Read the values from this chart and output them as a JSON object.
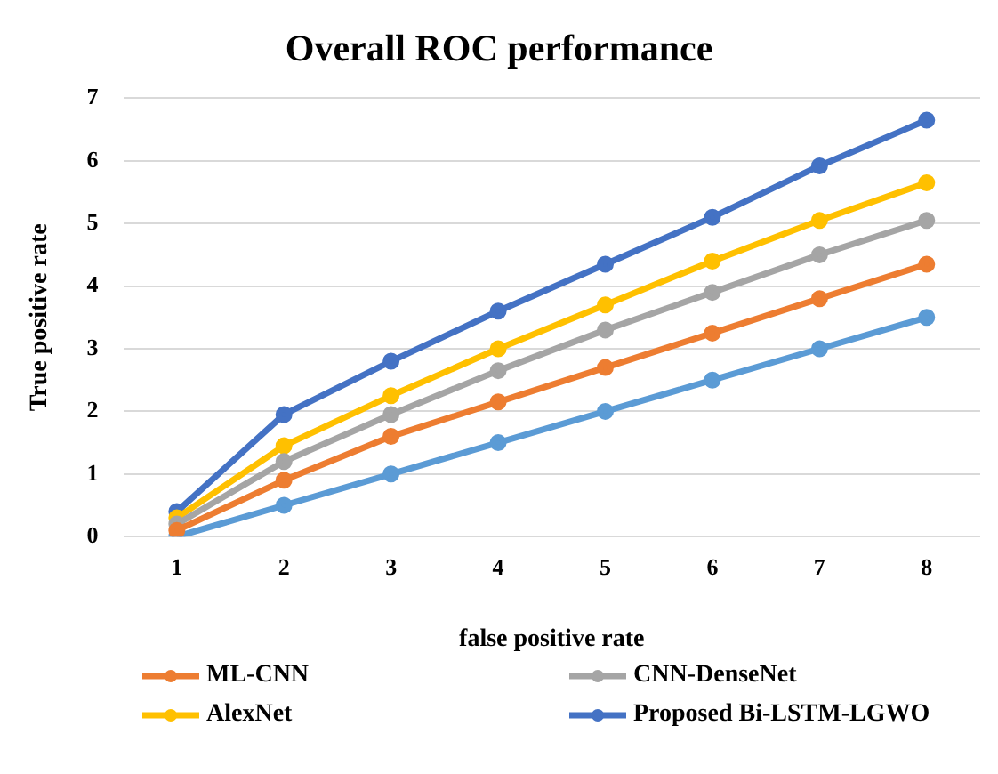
{
  "chart_data": {
    "type": "line",
    "title": "Overall ROC performance",
    "xlabel": "false positive rate",
    "ylabel": "True positive rate",
    "categories": [
      "1",
      "2",
      "3",
      "4",
      "5",
      "6",
      "7",
      "8"
    ],
    "series": [
      {
        "name": "ML-CNN",
        "color": "#ed7d31",
        "values": [
          0.1,
          0.9,
          1.6,
          2.15,
          2.7,
          3.25,
          3.8,
          4.35
        ]
      },
      {
        "name": "CNN-DenseNet",
        "color": "#a5a5a5",
        "values": [
          0.2,
          1.2,
          1.95,
          2.65,
          3.3,
          3.9,
          4.5,
          5.05
        ]
      },
      {
        "name": "AlexNet",
        "color": "#ffc000",
        "values": [
          0.3,
          1.45,
          2.25,
          3.0,
          3.7,
          4.4,
          5.05,
          5.65
        ]
      },
      {
        "name": "Proposed Bi-LSTM-LGWO",
        "color": "#4472c4",
        "values": [
          0.4,
          1.95,
          2.8,
          3.6,
          4.35,
          5.1,
          5.92,
          6.65
        ]
      },
      {
        "color": "#5b9bd5",
        "values": [
          0,
          0.5,
          1,
          1.5,
          2,
          2.5,
          3,
          3.5
        ]
      }
    ],
    "ylim": [
      0,
      7
    ],
    "yticks": [
      0,
      1,
      2,
      3,
      4,
      5,
      6,
      7
    ],
    "grid": "y",
    "legend": "bottom",
    "marker": "circle",
    "line_style": "solid"
  }
}
